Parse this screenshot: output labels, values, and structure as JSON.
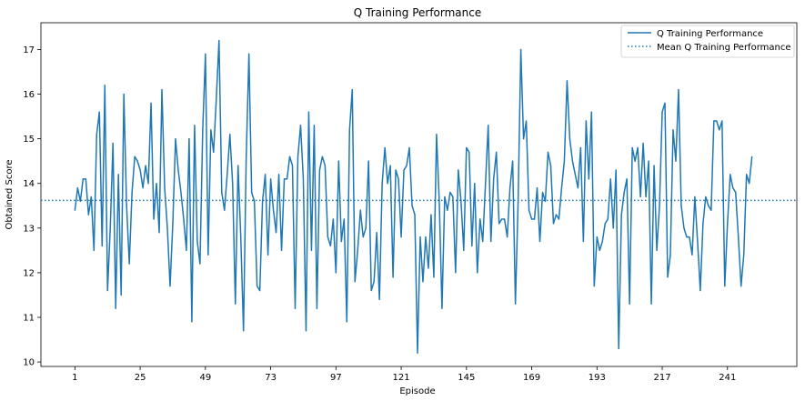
{
  "chart_data": {
    "type": "line",
    "title": "Q Training Performance",
    "xlabel": "Episode",
    "ylabel": "Obtained Score",
    "xlim": [
      -11.5,
      266.5
    ],
    "ylim": [
      9.9,
      17.6
    ],
    "xticks": [
      1,
      25,
      49,
      73,
      97,
      121,
      145,
      169,
      193,
      217,
      241
    ],
    "yticks": [
      10,
      11,
      12,
      13,
      14,
      15,
      16,
      17
    ],
    "grid": false,
    "legend_position": "top-right",
    "color": "#1f77b4",
    "series": [
      {
        "name": "Q Training Performance",
        "style": "solid",
        "x_start": 1,
        "values": [
          13.4,
          13.9,
          13.6,
          14.1,
          14.1,
          13.3,
          13.7,
          12.5,
          15.1,
          15.6,
          12.6,
          16.2,
          11.6,
          13.0,
          14.9,
          11.2,
          14.2,
          11.5,
          16.0,
          13.5,
          12.2,
          13.8,
          14.6,
          14.5,
          14.3,
          13.9,
          14.4,
          14.0,
          15.8,
          13.2,
          14.0,
          12.9,
          16.1,
          13.9,
          13.0,
          11.7,
          13.1,
          15.0,
          14.3,
          13.8,
          13.2,
          12.5,
          15.0,
          10.9,
          15.3,
          12.7,
          12.2,
          15.2,
          16.9,
          12.4,
          15.2,
          14.7,
          15.9,
          17.2,
          13.8,
          13.4,
          14.2,
          15.1,
          14.0,
          11.3,
          14.4,
          12.8,
          10.7,
          14.6,
          16.9,
          13.8,
          13.6,
          11.7,
          11.6,
          13.6,
          14.2,
          12.4,
          14.1,
          13.4,
          12.9,
          14.2,
          12.5,
          14.1,
          14.1,
          14.6,
          14.4,
          11.2,
          14.6,
          15.3,
          14.1,
          10.7,
          15.6,
          12.5,
          15.3,
          11.2,
          14.3,
          14.6,
          14.4,
          12.8,
          12.6,
          13.2,
          12.0,
          14.5,
          12.7,
          13.2,
          10.9,
          15.2,
          16.1,
          11.8,
          12.5,
          13.4,
          12.8,
          13.0,
          14.5,
          11.6,
          11.8,
          12.9,
          11.4,
          14.0,
          14.8,
          14.0,
          14.4,
          11.9,
          14.3,
          14.1,
          12.8,
          14.3,
          14.4,
          14.8,
          13.5,
          13.3,
          10.2,
          12.8,
          11.8,
          12.8,
          12.1,
          13.3,
          11.9,
          15.1,
          13.6,
          11.2,
          13.7,
          13.4,
          13.8,
          13.7,
          12.0,
          14.3,
          13.6,
          12.5,
          14.8,
          14.7,
          12.6,
          14.0,
          12.0,
          13.2,
          12.7,
          14.0,
          15.3,
          12.7,
          14.1,
          14.7,
          13.1,
          13.2,
          13.2,
          12.8,
          13.9,
          14.5,
          11.3,
          13.6,
          17.0,
          15.0,
          15.4,
          13.4,
          13.2,
          13.2,
          13.9,
          12.7,
          13.8,
          13.6,
          14.7,
          14.4,
          13.1,
          13.3,
          13.2,
          13.9,
          14.5,
          16.3,
          15.0,
          14.5,
          14.2,
          13.9,
          14.8,
          12.7,
          15.4,
          14.1,
          15.6,
          11.7,
          12.8,
          12.5,
          12.7,
          13.1,
          13.2,
          14.1,
          13.0,
          14.3,
          10.3,
          13.3,
          13.8,
          14.1,
          11.3,
          14.8,
          14.5,
          14.8,
          13.7,
          14.9,
          13.7,
          14.5,
          11.3,
          14.4,
          12.5,
          13.5,
          15.6,
          15.8,
          11.9,
          12.4,
          15.2,
          14.5,
          16.1,
          13.5,
          13.0,
          12.8,
          12.8,
          12.4,
          13.7,
          12.7,
          11.6,
          13.1,
          13.7,
          13.5,
          13.4,
          15.4,
          15.4,
          15.2,
          15.4,
          11.7,
          13.1,
          14.2,
          13.9,
          13.8,
          12.8,
          11.7,
          12.4,
          14.2,
          14.0,
          14.6
        ]
      },
      {
        "name": "Mean Q Training Performance",
        "style": "dotted",
        "value": 13.62
      }
    ]
  }
}
